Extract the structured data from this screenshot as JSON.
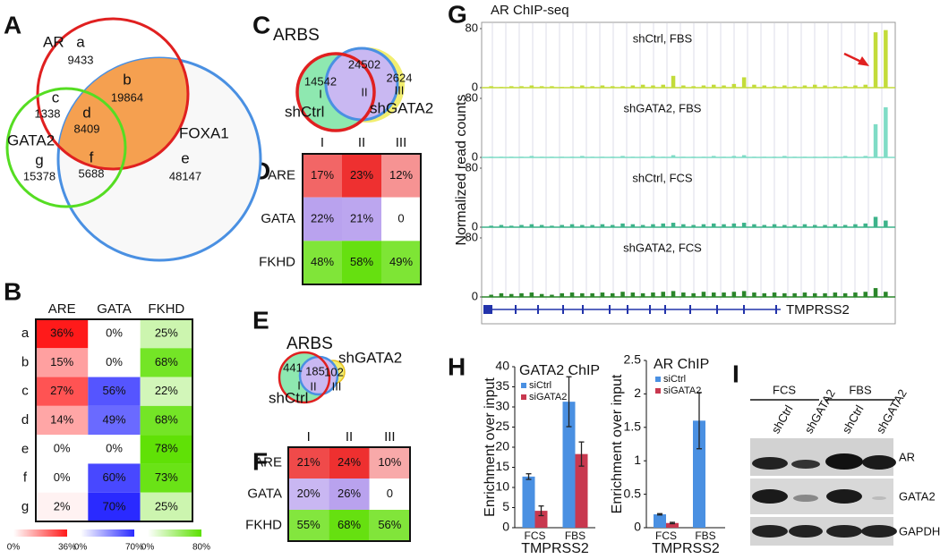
{
  "panel_letters": [
    "A",
    "B",
    "C",
    "D",
    "E",
    "F",
    "G",
    "H",
    "I"
  ],
  "venn_a": {
    "sets": [
      "AR",
      "GATA2",
      "FOXA1"
    ],
    "regions": [
      {
        "letter": "a",
        "count": 9433
      },
      {
        "letter": "b",
        "count": 19864
      },
      {
        "letter": "c",
        "count": 1338
      },
      {
        "letter": "d",
        "count": 8409
      },
      {
        "letter": "e",
        "count": 48147
      },
      {
        "letter": "f",
        "count": 5688
      },
      {
        "letter": "g",
        "count": 15378
      }
    ]
  },
  "venn_c": {
    "title": "ARBS",
    "sets": [
      "shCtrl",
      "shGATA2"
    ],
    "regions": [
      {
        "roman": "I",
        "count": 14542
      },
      {
        "roman": "II",
        "count": 24502
      },
      {
        "roman": "III",
        "count": 2624
      }
    ]
  },
  "venn_e": {
    "title": "ARBS",
    "sets": [
      "shCtrl",
      "shGATA2"
    ],
    "regions": [
      {
        "roman": "I",
        "count": 441
      },
      {
        "roman": "II",
        "count": 185
      },
      {
        "roman": "III",
        "count": 102
      }
    ]
  },
  "chart_data": [
    {
      "type": "heatmap",
      "color_by": "column",
      "columns": [
        "ARE",
        "GATA",
        "FKHD"
      ],
      "rows": [
        "a",
        "b",
        "c",
        "d",
        "e",
        "f",
        "g"
      ],
      "values": [
        [
          36,
          0,
          25
        ],
        [
          15,
          0,
          68
        ],
        [
          27,
          56,
          22
        ],
        [
          14,
          49,
          68
        ],
        [
          0,
          0,
          78
        ],
        [
          0,
          60,
          73
        ],
        [
          2,
          70,
          25
        ]
      ],
      "value_labels": [
        [
          "36%",
          "0%",
          "25%"
        ],
        [
          "15%",
          "0%",
          "68%"
        ],
        [
          "27%",
          "56%",
          "22%"
        ],
        [
          "14%",
          "49%",
          "68%"
        ],
        [
          "0%",
          "0%",
          "78%"
        ],
        [
          "0%",
          "60%",
          "73%"
        ],
        [
          "2%",
          "70%",
          "25%"
        ]
      ],
      "colors": [
        "#ff1a1a",
        "#2a2aff",
        "#5ce000"
      ],
      "colorbars": [
        {
          "lim": [
            0,
            36
          ],
          "ticks": [
            {
              "value": 0,
              "label": "0%"
            },
            {
              "value": 36,
              "label": "36%"
            }
          ]
        },
        {
          "lim": [
            0,
            70
          ],
          "ticks": [
            {
              "value": 0,
              "label": "0%"
            },
            {
              "value": 70,
              "label": "70%"
            }
          ]
        },
        {
          "lim": [
            0,
            80
          ],
          "ticks": [
            {
              "value": 0,
              "label": "0%"
            },
            {
              "value": 80,
              "label": "80%"
            }
          ]
        }
      ]
    },
    {
      "type": "heatmap",
      "color_by": "row",
      "columns": [
        "I",
        "II",
        "III"
      ],
      "rows": [
        "ARE",
        "GATA",
        "FKHD"
      ],
      "values": [
        [
          17,
          23,
          12
        ],
        [
          22,
          21,
          0
        ],
        [
          48,
          58,
          49
        ]
      ],
      "value_labels": [
        [
          "17%",
          "23%",
          "12%"
        ],
        [
          "22%",
          "21%",
          "0"
        ],
        [
          "48%",
          "58%",
          "49%"
        ]
      ],
      "colors": [
        "#ee3030",
        "#b9a2ee",
        "#66e010"
      ]
    },
    {
      "type": "heatmap",
      "color_by": "row",
      "columns": [
        "I",
        "II",
        "III"
      ],
      "rows": [
        "ARE",
        "GATA",
        "FKHD"
      ],
      "values": [
        [
          21,
          24,
          10
        ],
        [
          20,
          26,
          0
        ],
        [
          55,
          68,
          56
        ]
      ],
      "value_labels": [
        [
          "21%",
          "24%",
          "10%"
        ],
        [
          "20%",
          "26%",
          "0"
        ],
        [
          "55%",
          "68%",
          "56%"
        ]
      ],
      "colors": [
        "#ee3030",
        "#b9a2ee",
        "#66e010"
      ]
    },
    {
      "type": "signal",
      "title": "AR ChIP-seq",
      "ylabel": "Normalized read counts",
      "gene": "TMPRSS2",
      "ylim": [
        0,
        80
      ],
      "yticks": [
        0,
        80
      ],
      "series": [
        {
          "name": "shCtrl, FBS",
          "color": "#c3dc3a",
          "values": [
            2,
            1,
            2,
            2,
            3,
            2,
            2,
            1,
            2,
            3,
            2,
            3,
            2,
            2,
            3,
            4,
            3,
            4,
            16,
            3,
            2,
            3,
            4,
            3,
            5,
            14,
            4,
            3,
            2,
            3,
            2,
            3,
            4,
            3,
            2,
            2,
            3,
            4,
            75,
            78
          ]
        },
        {
          "name": "shGATA2, FBS",
          "color": "#7fdcc6",
          "values": [
            1,
            1,
            1,
            1,
            2,
            1,
            1,
            1,
            1,
            2,
            1,
            1,
            1,
            2,
            1,
            1,
            2,
            1,
            3,
            1,
            1,
            1,
            2,
            1,
            2,
            3,
            1,
            1,
            1,
            2,
            1,
            1,
            1,
            1,
            1,
            2,
            1,
            2,
            45,
            68
          ]
        },
        {
          "name": "shCtrl, FCS",
          "color": "#3db38a",
          "values": [
            2,
            3,
            2,
            3,
            4,
            3,
            2,
            3,
            4,
            3,
            3,
            4,
            3,
            5,
            4,
            3,
            4,
            5,
            6,
            4,
            3,
            4,
            5,
            4,
            5,
            6,
            4,
            3,
            4,
            3,
            3,
            4,
            3,
            3,
            4,
            3,
            4,
            5,
            14,
            9
          ]
        },
        {
          "name": "shGATA2, FCS",
          "color": "#2a862a",
          "values": [
            3,
            5,
            4,
            5,
            6,
            4,
            3,
            5,
            6,
            5,
            5,
            6,
            5,
            7,
            6,
            5,
            6,
            7,
            8,
            6,
            5,
            7,
            6,
            6,
            7,
            8,
            6,
            5,
            6,
            5,
            5,
            6,
            5,
            5,
            6,
            5,
            6,
            7,
            12,
            7
          ]
        }
      ]
    },
    {
      "type": "bar",
      "title": "GATA2 ChIP",
      "ylabel": "Enrichment over input",
      "xlabel": "TMPRSS2",
      "categories": [
        "FCS",
        "FBS"
      ],
      "ylim": [
        0,
        40
      ],
      "yticks": [
        0,
        5,
        10,
        15,
        20,
        25,
        30,
        35,
        40
      ],
      "series": [
        {
          "name": "siCtrl",
          "color": "#4a90e2",
          "values": [
            12.7,
            31.3
          ],
          "errors": [
            0.7,
            6.2
          ]
        },
        {
          "name": "siGATA2",
          "color": "#c8384f",
          "values": [
            4.2,
            18.3
          ],
          "errors": [
            1.2,
            3
          ]
        }
      ]
    },
    {
      "type": "bar",
      "title": "AR ChIP",
      "ylabel": "Enrichment over input",
      "xlabel": "TMPRSS2",
      "categories": [
        "FCS",
        "FBS"
      ],
      "ylim": [
        0,
        2.5
      ],
      "yticks": [
        0,
        0.5,
        1,
        1.5,
        2,
        2.5
      ],
      "series": [
        {
          "name": "siCtrl",
          "color": "#4a90e2",
          "values": [
            0.2,
            1.6
          ],
          "errors": [
            0.01,
            0.42
          ]
        },
        {
          "name": "siGATA2",
          "color": "#c8384f",
          "values": [
            0.07,
            null
          ],
          "errors": [
            0.01,
            null
          ]
        }
      ]
    }
  ],
  "blot_i": {
    "conditions": [
      "FCS",
      "FBS"
    ],
    "lanes": [
      "shCtrl",
      "shGATA2",
      "shCtrl",
      "shGATA2"
    ],
    "proteins": [
      "AR",
      "GATA2",
      "GAPDH"
    ]
  }
}
